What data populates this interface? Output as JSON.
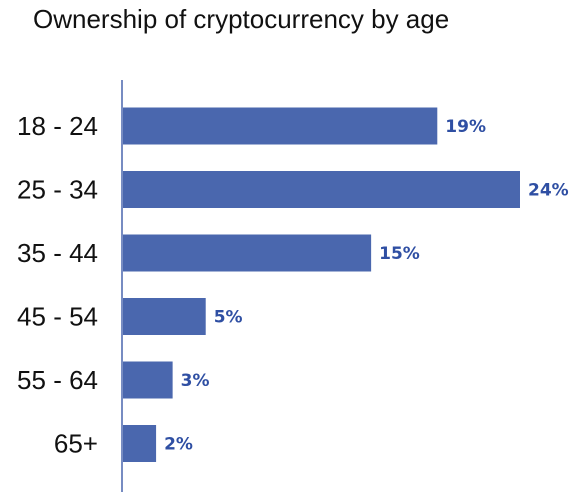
{
  "chart_data": {
    "type": "bar",
    "orientation": "horizontal",
    "title": "Ownership of cryptocurrency by age",
    "xlabel": "",
    "ylabel": "",
    "categories": [
      "18 - 24",
      "25 - 34",
      "35 - 44",
      "45 - 54",
      "55 - 64",
      "65+"
    ],
    "values": [
      19,
      24,
      15,
      5,
      3,
      2
    ],
    "data_labels": [
      "19%",
      "24%",
      "15%",
      "5%",
      "3%",
      "2%"
    ],
    "xlim": [
      0,
      24
    ],
    "grid": false,
    "legend": "none",
    "colors": {
      "bar": "#4a67ae",
      "axis": "#4a67ae",
      "data_label": "#2f4fa3",
      "text": "#111111"
    }
  }
}
